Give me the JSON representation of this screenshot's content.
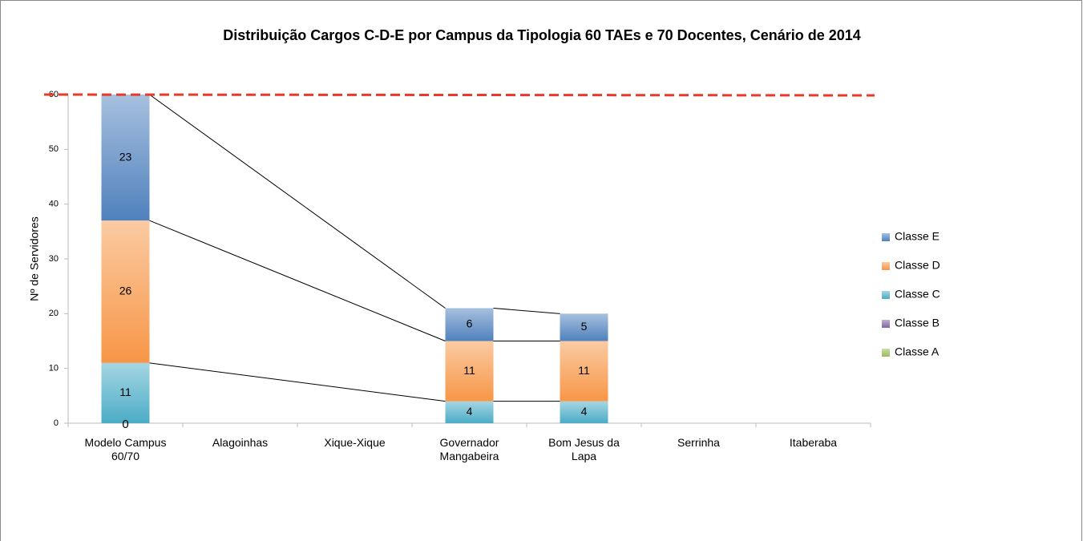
{
  "chart_data": {
    "type": "stacked_bar",
    "title": "Distribuição Cargos C-D-E por Campus da Tipologia 60 TAEs e 70 Docentes, Cenário de 2014",
    "y_label": "Nº de Servidores",
    "categories": [
      "Modelo Campus 60/70",
      "Alagoinhas",
      "Xique-Xique",
      "Governador Mangabeira",
      "Bom Jesus da Lapa",
      "Serrinha",
      "Itaberaba"
    ],
    "series": [
      {
        "name": "Classe A",
        "color": "#9bbb59",
        "values": [
          0,
          null,
          null,
          null,
          null,
          null,
          null
        ]
      },
      {
        "name": "Classe B",
        "color": "#8064a2",
        "values": [
          null,
          null,
          null,
          null,
          null,
          null,
          null
        ]
      },
      {
        "name": "Classe C",
        "color": "#4bacc6",
        "values": [
          11,
          null,
          null,
          4,
          4,
          null,
          null
        ]
      },
      {
        "name": "Classe D",
        "color": "#f79646",
        "values": [
          26,
          null,
          null,
          11,
          11,
          null,
          null
        ]
      },
      {
        "name": "Classe E",
        "color": "#4f81bd",
        "values": [
          23,
          null,
          null,
          6,
          5,
          null,
          null
        ]
      }
    ],
    "ylim": [
      0,
      60
    ],
    "yticks": [
      0,
      10,
      20,
      30,
      40,
      50,
      60
    ],
    "reference_line": {
      "value": 60,
      "color": "#e8392a"
    },
    "legend": "right"
  }
}
